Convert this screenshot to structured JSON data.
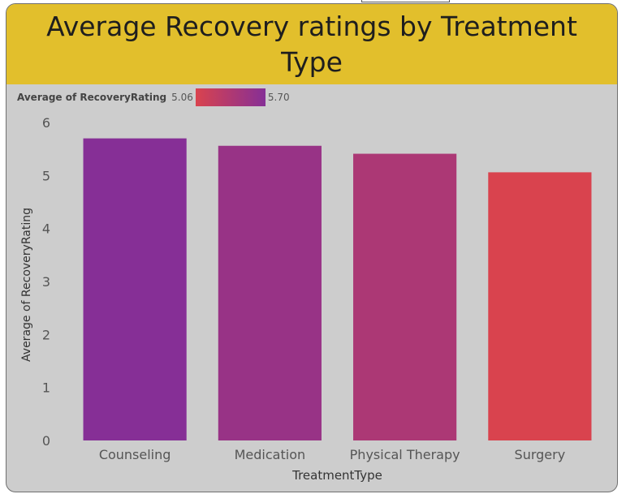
{
  "chart_data": {
    "type": "bar",
    "title": "Average Recovery ratings by Treatment Type",
    "xlabel": "TreatmentType",
    "ylabel": "Average of RecoveryRating",
    "categories": [
      "Counseling",
      "Medication",
      "Physical Therapy",
      "Surgery"
    ],
    "values": [
      5.7,
      5.56,
      5.41,
      5.06
    ],
    "ylim": [
      0,
      6
    ],
    "yticks": [
      0,
      1,
      2,
      3,
      4,
      5,
      6
    ],
    "grid": false,
    "legend": {
      "title": "Average of RecoveryRating",
      "min_label": "5.06",
      "max_label": "5.70",
      "min_value": 5.06,
      "max_value": 5.7,
      "min_color": "#d9434e",
      "max_color": "#862f96",
      "placement": "top-left"
    },
    "colors": {
      "title_bar": "#e2bf2c",
      "background": "#cdcdcd"
    }
  }
}
